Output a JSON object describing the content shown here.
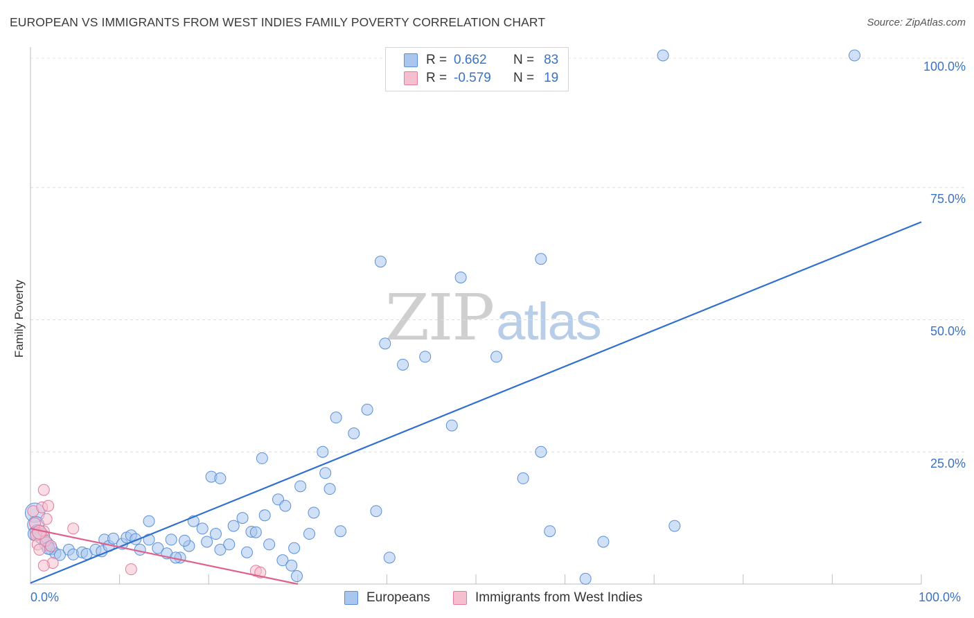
{
  "header": {
    "title": "EUROPEAN VS IMMIGRANTS FROM WEST INDIES FAMILY POVERTY CORRELATION CHART",
    "source": "Source: ZipAtlas.com"
  },
  "watermark": {
    "zip": "ZIP",
    "atlas": "atlas"
  },
  "legend": {
    "rows": [
      {
        "r_label": "R =",
        "r_value": "0.662",
        "n_label": "N =",
        "n_value": "83",
        "color": "#a9c6ef",
        "border": "#5a8fd8"
      },
      {
        "r_label": "R =",
        "r_value": "-0.579",
        "n_label": "N =",
        "n_value": "19",
        "color": "#f6bfd0",
        "border": "#e07b9b"
      }
    ]
  },
  "bottom_legend": [
    {
      "label": "Europeans",
      "color": "#a9c6ef",
      "border": "#5a8fd8"
    },
    {
      "label": "Immigrants from West Indies",
      "color": "#f6bfd0",
      "border": "#e07b9b"
    }
  ],
  "axes": {
    "ylabel": "Family Poverty",
    "y_ticks": [
      "100.0%",
      "75.0%",
      "50.0%",
      "25.0%"
    ],
    "x_ticks": [
      "0.0%",
      "100.0%"
    ]
  },
  "chart_data": {
    "type": "scatter",
    "title": "EUROPEAN VS IMMIGRANTS FROM WEST INDIES FAMILY POVERTY CORRELATION CHART",
    "xlabel": "",
    "ylabel": "Family Poverty",
    "xlim": [
      0,
      100
    ],
    "ylim": [
      0,
      100
    ],
    "grid": true,
    "series": [
      {
        "name": "Europeans",
        "color": "#5a8fd8",
        "fill": "rgba(169,198,239,0.55)",
        "points": [
          [
            0.5,
            13.5,
            14
          ],
          [
            0.6,
            11.2,
            12
          ],
          [
            0.8,
            9.8,
            11
          ],
          [
            1.3,
            9.0,
            11
          ],
          [
            1.8,
            7.6,
            10
          ],
          [
            2.3,
            6.7,
            9
          ],
          [
            2.8,
            5.8,
            8
          ],
          [
            3.3,
            5.5,
            8
          ],
          [
            4.3,
            6.5,
            8
          ],
          [
            4.8,
            5.6,
            8
          ],
          [
            5.8,
            6.0,
            8
          ],
          [
            6.3,
            5.7,
            8
          ],
          [
            7.3,
            6.5,
            8
          ],
          [
            8.0,
            6.2,
            8
          ],
          [
            8.3,
            8.4,
            8
          ],
          [
            8.8,
            7.2,
            8
          ],
          [
            9.3,
            8.6,
            8
          ],
          [
            10.3,
            7.6,
            8
          ],
          [
            10.8,
            8.8,
            8
          ],
          [
            11.3,
            9.2,
            8
          ],
          [
            11.8,
            8.5,
            8
          ],
          [
            12.3,
            6.5,
            8
          ],
          [
            13.3,
            8.4,
            8
          ],
          [
            14.3,
            6.8,
            8
          ],
          [
            13.3,
            11.9,
            8
          ],
          [
            15.3,
            5.8,
            8
          ],
          [
            15.8,
            8.4,
            8
          ],
          [
            16.8,
            5.0,
            8
          ],
          [
            16.3,
            5.0,
            8
          ],
          [
            17.8,
            7.2,
            8
          ],
          [
            18.3,
            11.9,
            8
          ],
          [
            19.3,
            10.5,
            8
          ],
          [
            17.3,
            8.2,
            8
          ],
          [
            19.8,
            8.0,
            8
          ],
          [
            20.8,
            9.5,
            8
          ],
          [
            21.3,
            6.5,
            8
          ],
          [
            22.3,
            7.5,
            8
          ],
          [
            20.3,
            20.3,
            8
          ],
          [
            21.3,
            20.0,
            8
          ],
          [
            22.8,
            11.0,
            8
          ],
          [
            23.8,
            12.5,
            8
          ],
          [
            24.8,
            9.9,
            8
          ],
          [
            24.3,
            6.0,
            8
          ],
          [
            25.3,
            9.8,
            8
          ],
          [
            26.0,
            23.8,
            8
          ],
          [
            26.3,
            13.0,
            8
          ],
          [
            26.8,
            7.5,
            8
          ],
          [
            27.8,
            16.0,
            8
          ],
          [
            28.3,
            4.5,
            8
          ],
          [
            28.6,
            14.8,
            8
          ],
          [
            29.3,
            3.5,
            8
          ],
          [
            29.6,
            6.8,
            8
          ],
          [
            29.9,
            1.5,
            8
          ],
          [
            30.3,
            18.5,
            8
          ],
          [
            31.3,
            9.5,
            8
          ],
          [
            31.8,
            13.5,
            8
          ],
          [
            32.8,
            25.0,
            8
          ],
          [
            33.1,
            21.0,
            8
          ],
          [
            33.6,
            18.0,
            8
          ],
          [
            34.3,
            31.5,
            8
          ],
          [
            34.8,
            10.0,
            8
          ],
          [
            36.3,
            28.5,
            8
          ],
          [
            37.8,
            33.0,
            8
          ],
          [
            38.8,
            13.8,
            8
          ],
          [
            39.3,
            61.0,
            8
          ],
          [
            39.8,
            45.5,
            8
          ],
          [
            40.3,
            5.0,
            8
          ],
          [
            41.8,
            41.5,
            8
          ],
          [
            44.3,
            43.0,
            8
          ],
          [
            47.3,
            30.0,
            8
          ],
          [
            48.3,
            58.0,
            8
          ],
          [
            52.3,
            43.0,
            8
          ],
          [
            55.3,
            20.0,
            8
          ],
          [
            57.3,
            61.5,
            8
          ],
          [
            57.3,
            25.0,
            8
          ],
          [
            58.3,
            10.0,
            8
          ],
          [
            62.3,
            1.0,
            8
          ],
          [
            64.3,
            8.0,
            8
          ],
          [
            72.3,
            11.0,
            8
          ],
          [
            71.0,
            100.0,
            8
          ],
          [
            92.5,
            100.0,
            8
          ],
          [
            0.5,
            9.5,
            10
          ],
          [
            2.0,
            6.8,
            9
          ]
        ],
        "trend": {
          "x": [
            0,
            100
          ],
          "y": [
            0.2,
            68.5
          ]
        }
      },
      {
        "name": "Immigrants from West Indies",
        "color": "#e07b9b",
        "fill": "rgba(246,191,208,0.55)",
        "points": [
          [
            0.3,
            13.8,
            8
          ],
          [
            0.5,
            11.5,
            8
          ],
          [
            0.6,
            9.2,
            8
          ],
          [
            0.8,
            7.5,
            8
          ],
          [
            1.0,
            6.5,
            8
          ],
          [
            1.3,
            14.5,
            8
          ],
          [
            1.5,
            10.0,
            8
          ],
          [
            1.7,
            8.2,
            8
          ],
          [
            1.5,
            17.8,
            8
          ],
          [
            1.8,
            12.3,
            8
          ],
          [
            2.0,
            14.8,
            8
          ],
          [
            2.3,
            7.2,
            8
          ],
          [
            2.5,
            4.0,
            8
          ],
          [
            1.5,
            3.5,
            8
          ],
          [
            4.8,
            10.5,
            8
          ],
          [
            11.3,
            2.8,
            8
          ],
          [
            25.3,
            2.5,
            8
          ],
          [
            25.8,
            2.2,
            8
          ],
          [
            1.0,
            9.8,
            10
          ]
        ],
        "trend": {
          "x": [
            0,
            30
          ],
          "y": [
            10.5,
            0.0
          ]
        }
      }
    ]
  }
}
